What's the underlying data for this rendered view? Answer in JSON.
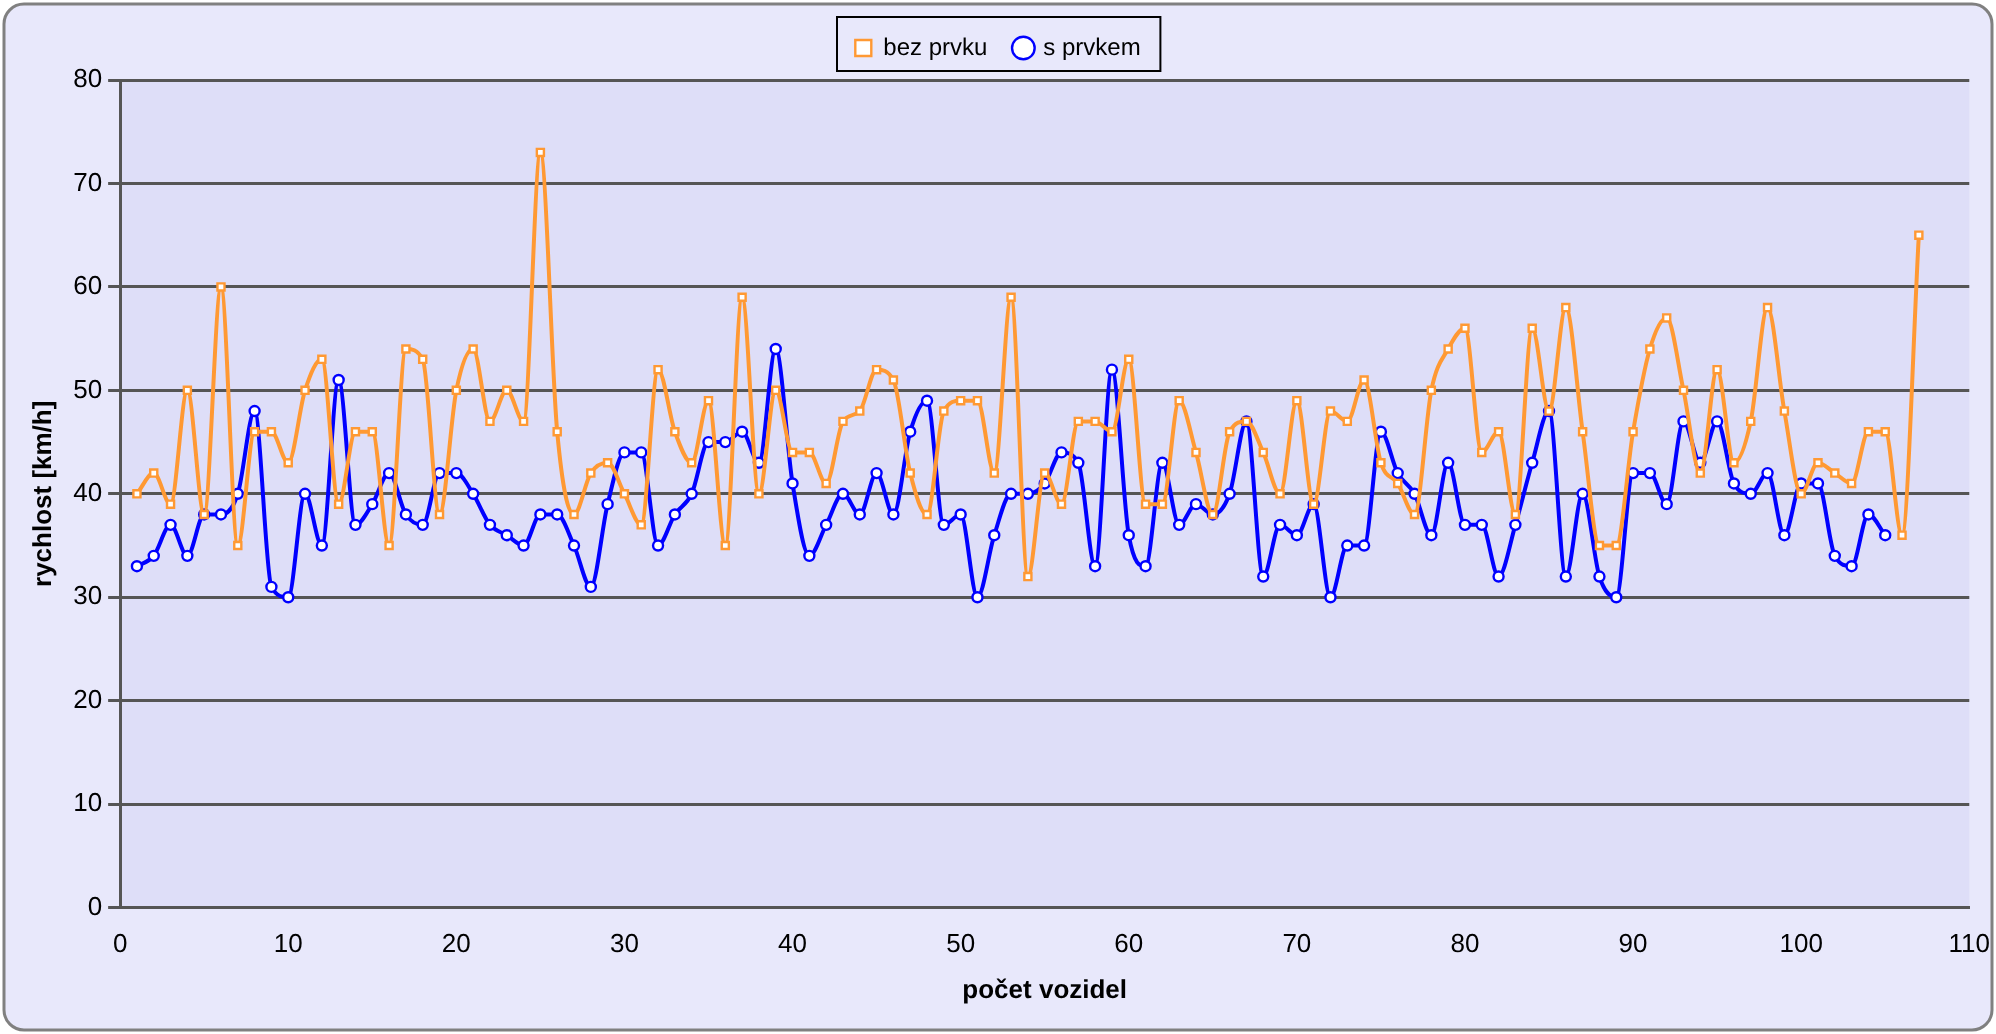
{
  "chart_data": {
    "type": "line",
    "xlabel": "počet vozidel",
    "ylabel": "rychlost [km/h]",
    "xlim": [
      0,
      110
    ],
    "xticks": [
      0,
      10,
      20,
      30,
      40,
      50,
      60,
      70,
      80,
      90,
      100,
      110
    ],
    "ylim": [
      0,
      80
    ],
    "yticks": [
      0,
      10,
      20,
      30,
      40,
      50,
      60,
      70,
      80
    ],
    "grid": "y",
    "legend": "top",
    "series": [
      {
        "name": "bez prvku",
        "color": "#ff9933",
        "marker": "square",
        "x": [
          1,
          2,
          3,
          4,
          5,
          6,
          7,
          8,
          9,
          10,
          11,
          12,
          13,
          14,
          15,
          16,
          17,
          18,
          19,
          20,
          21,
          22,
          23,
          24,
          25,
          26,
          27,
          28,
          29,
          30,
          31,
          32,
          33,
          34,
          35,
          36,
          37,
          38,
          39,
          40,
          41,
          42,
          43,
          44,
          45,
          46,
          47,
          48,
          49,
          50,
          51,
          52,
          53,
          54,
          55,
          56,
          57,
          58,
          59,
          60,
          61,
          62,
          63,
          64,
          65,
          66,
          67,
          68,
          69,
          70,
          71,
          72,
          73,
          74,
          75,
          76,
          77,
          78,
          79,
          80,
          81,
          82,
          83,
          84,
          85,
          86,
          87,
          88,
          89,
          90,
          91,
          92,
          93,
          94,
          95,
          96,
          97,
          98,
          99,
          100,
          101,
          102,
          103,
          104,
          105,
          106,
          107
        ],
        "values": [
          40,
          42,
          39,
          50,
          38,
          60,
          35,
          46,
          46,
          43,
          50,
          53,
          39,
          46,
          46,
          35,
          54,
          53,
          38,
          50,
          54,
          47,
          50,
          47,
          73,
          46,
          38,
          42,
          43,
          40,
          37,
          52,
          46,
          43,
          49,
          35,
          59,
          40,
          50,
          44,
          44,
          41,
          47,
          48,
          52,
          51,
          42,
          38,
          48,
          49,
          49,
          42,
          59,
          32,
          42,
          39,
          47,
          47,
          46,
          53,
          39,
          39,
          49,
          44,
          38,
          46,
          47,
          44,
          40,
          49,
          39,
          48,
          47,
          51,
          43,
          41,
          38,
          50,
          54,
          56,
          44,
          46,
          38,
          56,
          48,
          58,
          46,
          35,
          35,
          46,
          54,
          57,
          50,
          42,
          52,
          43,
          47,
          58,
          48,
          40,
          43,
          42,
          41,
          46,
          46,
          36,
          65
        ]
      },
      {
        "name": "s prvkem",
        "color": "#0000ff",
        "marker": "circle",
        "x": [
          1,
          2,
          3,
          4,
          5,
          6,
          7,
          8,
          9,
          10,
          11,
          12,
          13,
          14,
          15,
          16,
          17,
          18,
          19,
          20,
          21,
          22,
          23,
          24,
          25,
          26,
          27,
          28,
          29,
          30,
          31,
          32,
          33,
          34,
          35,
          36,
          37,
          38,
          39,
          40,
          41,
          42,
          43,
          44,
          45,
          46,
          47,
          48,
          49,
          50,
          51,
          52,
          53,
          54,
          55,
          56,
          57,
          58,
          59,
          60,
          61,
          62,
          63,
          64,
          65,
          66,
          67,
          68,
          69,
          70,
          71,
          72,
          73,
          74,
          75,
          76,
          77,
          78,
          79,
          80,
          81,
          82,
          83,
          84,
          85,
          86,
          87,
          88,
          89,
          90,
          91,
          92,
          93,
          94,
          95,
          96,
          97,
          98,
          99,
          100,
          101,
          102,
          103,
          104,
          105
        ],
        "values": [
          33,
          34,
          37,
          34,
          38,
          38,
          40,
          48,
          31,
          30,
          40,
          35,
          51,
          37,
          39,
          42,
          38,
          37,
          42,
          42,
          40,
          37,
          36,
          35,
          38,
          38,
          35,
          31,
          39,
          44,
          44,
          35,
          38,
          40,
          45,
          45,
          46,
          43,
          54,
          41,
          34,
          37,
          40,
          38,
          42,
          38,
          46,
          49,
          37,
          38,
          30,
          36,
          40,
          40,
          41,
          44,
          43,
          33,
          52,
          36,
          33,
          43,
          37,
          39,
          38,
          40,
          47,
          32,
          37,
          36,
          39,
          30,
          35,
          35,
          46,
          42,
          40,
          36,
          43,
          37,
          37,
          32,
          37,
          43,
          48,
          32,
          40,
          32,
          30,
          42,
          42,
          39,
          47,
          43,
          47,
          41,
          40,
          42,
          36,
          41,
          41,
          34,
          33,
          38,
          36
        ]
      }
    ]
  }
}
